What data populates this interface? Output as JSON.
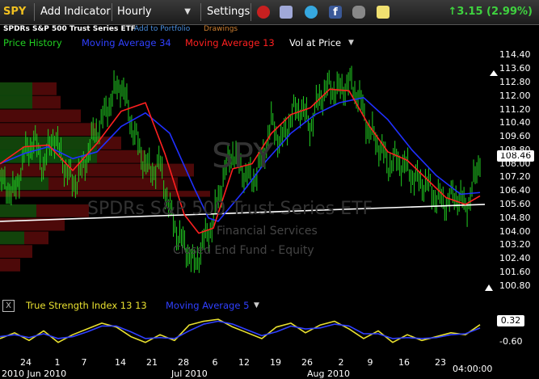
{
  "toolbar": {
    "symbol": "SPY",
    "add_indicator": "Add Indicator",
    "interval": "Hourly",
    "settings": "Settings",
    "change": "↑3.15 (2.99%)",
    "icons": [
      "alarm-clock-icon",
      "documents-icon",
      "twitter-icon",
      "facebook-icon",
      "binoculars-icon",
      "sticky-note-icon"
    ],
    "colors": {
      "change": "#3fd33f",
      "symbol": "#f0c020"
    }
  },
  "header": {
    "security_name": "SPDRs S&P 500 Trust Series ETF",
    "add_portfolio": "Add to Portfolio",
    "drawings": "Drawings"
  },
  "legend": {
    "price_history": "Price History",
    "ma34": "Moving Average 34",
    "ma13": "Moving Average 13",
    "vol_at_price": "Vol at Price",
    "colors": {
      "price": "#22d022",
      "ma34": "#2030ff",
      "ma13": "#ff2020",
      "vap": "#ffffff"
    }
  },
  "watermark": {
    "symbol": "SPY",
    "name": "SPDRs S&P 500 Trust Series ETF",
    "sector": "Financial Services",
    "type": "Closed End Fund - Equity"
  },
  "price_axis": {
    "ticks": [
      "114.40",
      "113.60",
      "112.80",
      "112.00",
      "111.20",
      "110.40",
      "109.60",
      "108.80",
      "108.00",
      "107.20",
      "106.40",
      "105.60",
      "104.80",
      "104.00",
      "103.20",
      "102.40",
      "101.60",
      "100.80"
    ],
    "last": "108.46"
  },
  "lower_panel": {
    "close": "X",
    "tsi_label": "True Strength Index 13 13",
    "ma_label": "Moving Average 5",
    "last": "0.32",
    "tick": "-0.60"
  },
  "date_axis": {
    "days": [
      "24",
      "1",
      "7",
      "14",
      "21",
      "28",
      "6",
      "12",
      "19",
      "26",
      "2",
      "9",
      "16",
      "23"
    ],
    "months": [
      "2010 Jun 2010",
      "Jul 2010",
      "Aug 2010"
    ],
    "time": "04:00:00"
  },
  "chart_data": [
    {
      "type": "line",
      "title": "",
      "ylim": [
        100.4,
        114.8
      ],
      "xlim": [
        0,
        100
      ],
      "y_ticks": [
        114.4,
        113.6,
        112.8,
        112.0,
        111.2,
        110.4,
        109.6,
        108.8,
        108.0,
        107.2,
        106.4,
        105.6,
        104.8,
        104.0,
        103.2,
        102.4,
        101.6,
        100.8
      ],
      "x_tick_positions": [
        3,
        9.5,
        15,
        22.5,
        29,
        35.5,
        42,
        48,
        54.5,
        61,
        68,
        74,
        81,
        88.5
      ],
      "x_tick_labels": [
        "24",
        "1",
        "7",
        "14",
        "21",
        "28",
        "6",
        "12",
        "19",
        "26",
        "2",
        "9",
        "16",
        "23"
      ],
      "series": [
        {
          "name": "Price History",
          "color": "#22d022",
          "x": [
            0,
            3,
            5,
            7,
            9,
            11,
            13,
            15,
            17,
            19,
            21,
            23,
            25,
            27,
            29,
            31,
            33,
            35,
            37,
            39,
            40,
            42,
            44,
            46,
            48,
            50,
            52,
            54,
            56,
            58,
            60,
            62,
            64,
            66,
            68,
            70,
            72,
            74,
            76,
            78,
            80,
            82,
            84,
            86,
            88,
            90,
            92,
            94,
            96,
            97,
            99
          ],
          "y": [
            107.0,
            106.2,
            108.5,
            109.4,
            107.8,
            109.8,
            108.1,
            106.8,
            107.6,
            109.5,
            110.5,
            111.9,
            112.8,
            110.5,
            108.6,
            107.5,
            108.0,
            105.2,
            103.6,
            102.8,
            101.9,
            103.4,
            104.6,
            107.2,
            108.8,
            107.6,
            107.0,
            108.2,
            110.4,
            109.2,
            110.8,
            111.4,
            110.2,
            112.0,
            112.5,
            112.3,
            112.8,
            112.0,
            110.0,
            109.2,
            108.0,
            108.2,
            107.7,
            107.0,
            106.8,
            106.0,
            105.7,
            106.2,
            105.5,
            106.0,
            108.46
          ]
        },
        {
          "name": "Moving Average 34",
          "color": "#2030ff",
          "x": [
            0,
            5,
            10,
            15,
            20,
            25,
            30,
            35,
            40,
            43,
            45,
            50,
            55,
            60,
            65,
            70,
            75,
            80,
            85,
            90,
            95,
            99
          ],
          "y": [
            108.0,
            108.6,
            109.0,
            108.3,
            108.7,
            110.2,
            111.0,
            109.8,
            106.6,
            104.8,
            104.6,
            106.3,
            108.2,
            109.8,
            110.9,
            111.6,
            111.9,
            110.6,
            108.8,
            107.3,
            106.2,
            106.3
          ]
        },
        {
          "name": "Moving Average 13",
          "color": "#ff2020",
          "x": [
            0,
            5,
            10,
            15,
            20,
            25,
            30,
            34,
            38,
            41,
            44,
            48,
            52,
            56,
            60,
            64,
            68,
            72,
            76,
            80,
            84,
            88,
            92,
            96,
            99
          ],
          "y": [
            108.0,
            109.0,
            109.1,
            107.6,
            109.2,
            111.1,
            111.6,
            108.6,
            105.0,
            103.9,
            104.2,
            107.7,
            108.0,
            109.8,
            110.9,
            111.3,
            112.4,
            112.3,
            110.3,
            108.7,
            108.2,
            107.1,
            106.0,
            105.6,
            106.1
          ]
        }
      ]
    },
    {
      "type": "line",
      "title": "True Strength Index 13 13",
      "ylim": [
        -1.2,
        0.9
      ],
      "y_ticks": [
        0.32,
        -0.6
      ],
      "series": [
        {
          "name": "True Strength Index 13 13",
          "color": "#e8e030",
          "x": [
            0,
            3,
            6,
            9,
            12,
            15,
            18,
            21,
            24,
            27,
            30,
            33,
            36,
            39,
            42,
            45,
            48,
            51,
            54,
            57,
            60,
            63,
            66,
            69,
            72,
            75,
            78,
            81,
            84,
            87,
            90,
            93,
            96,
            99
          ],
          "y": [
            -0.4,
            -0.1,
            -0.5,
            0.0,
            -0.6,
            -0.2,
            0.1,
            0.4,
            0.2,
            -0.3,
            -0.6,
            -0.2,
            -0.5,
            0.3,
            0.5,
            0.6,
            0.2,
            -0.1,
            -0.4,
            0.2,
            0.4,
            -0.1,
            0.3,
            0.5,
            0.1,
            -0.4,
            0.0,
            -0.6,
            -0.2,
            -0.5,
            -0.3,
            -0.1,
            -0.2,
            0.32
          ]
        },
        {
          "name": "Moving Average 5",
          "color": "#3040ff",
          "x": [
            0,
            3,
            6,
            9,
            12,
            15,
            18,
            21,
            24,
            27,
            30,
            33,
            36,
            39,
            42,
            45,
            48,
            51,
            54,
            57,
            60,
            63,
            66,
            69,
            72,
            75,
            78,
            81,
            84,
            87,
            90,
            93,
            96,
            99
          ],
          "y": [
            -0.3,
            -0.2,
            -0.35,
            -0.15,
            -0.4,
            -0.3,
            -0.05,
            0.25,
            0.25,
            -0.05,
            -0.4,
            -0.35,
            -0.4,
            0.0,
            0.35,
            0.5,
            0.35,
            0.05,
            -0.25,
            -0.05,
            0.25,
            0.1,
            0.15,
            0.35,
            0.25,
            -0.15,
            -0.15,
            -0.4,
            -0.35,
            -0.4,
            -0.35,
            -0.2,
            -0.15,
            0.15
          ]
        }
      ]
    }
  ]
}
